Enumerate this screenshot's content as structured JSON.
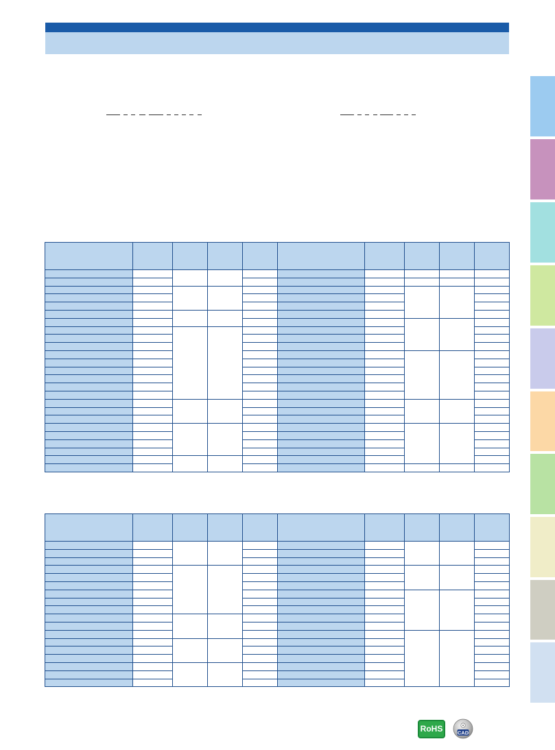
{
  "header": {
    "bar_color": "#1a5ba8",
    "band_color": "#bcd6ee"
  },
  "side_tabs": [
    {
      "color": "#9ccbf0"
    },
    {
      "color": "#c792bd"
    },
    {
      "color": "#a2e0e0"
    },
    {
      "color": "#cfe8a0"
    },
    {
      "color": "#c9cbeb"
    },
    {
      "color": "#fcd8a6"
    },
    {
      "color": "#b8e2a3"
    },
    {
      "color": "#f0edc8"
    },
    {
      "color": "#cfcec2"
    },
    {
      "color": "#d1e0f1"
    }
  ],
  "table_1": {
    "row_count": 25
  },
  "table_2": {
    "row_count": 18
  },
  "badges": {
    "rohs_label": "RoHS",
    "cad_label": "CAD"
  }
}
